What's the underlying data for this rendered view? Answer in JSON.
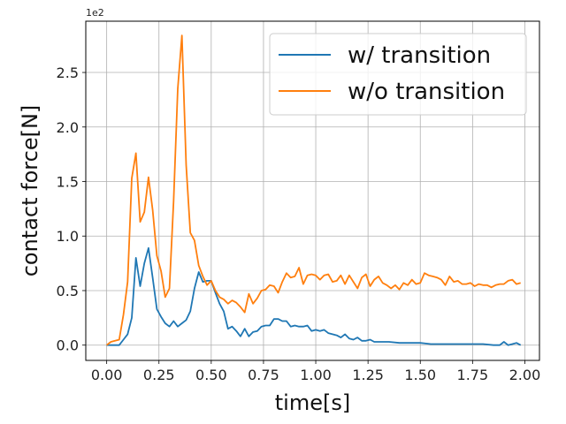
{
  "chart_data": {
    "type": "line",
    "title": "",
    "xlabel": "time[s]",
    "ylabel": "contact force[N]",
    "y_offset_label": "1e2",
    "xlim": [
      -0.1,
      2.07
    ],
    "ylim": [
      -0.14,
      2.97
    ],
    "xticks": [
      0.0,
      0.25,
      0.5,
      0.75,
      1.0,
      1.25,
      1.5,
      1.75,
      2.0
    ],
    "xtick_labels": [
      "0.00",
      "0.25",
      "0.50",
      "0.75",
      "1.00",
      "1.25",
      "1.50",
      "1.75",
      "2.00"
    ],
    "yticks": [
      0.0,
      0.5,
      1.0,
      1.5,
      2.0,
      2.5
    ],
    "ytick_labels": [
      "0.0",
      "0.5",
      "1.0",
      "1.5",
      "2.0",
      "2.5"
    ],
    "grid": true,
    "legend_position": "top-right",
    "series": [
      {
        "name": "w/ transition",
        "color": "#1f77b4",
        "x": [
          0.0,
          0.02,
          0.04,
          0.06,
          0.08,
          0.1,
          0.12,
          0.14,
          0.16,
          0.18,
          0.2,
          0.22,
          0.24,
          0.26,
          0.28,
          0.3,
          0.32,
          0.34,
          0.36,
          0.38,
          0.4,
          0.42,
          0.44,
          0.46,
          0.48,
          0.5,
          0.52,
          0.54,
          0.56,
          0.58,
          0.6,
          0.62,
          0.64,
          0.66,
          0.68,
          0.7,
          0.72,
          0.74,
          0.76,
          0.78,
          0.8,
          0.82,
          0.84,
          0.86,
          0.88,
          0.9,
          0.92,
          0.94,
          0.96,
          0.98,
          1.0,
          1.02,
          1.04,
          1.06,
          1.08,
          1.1,
          1.12,
          1.14,
          1.16,
          1.18,
          1.2,
          1.22,
          1.24,
          1.26,
          1.28,
          1.3,
          1.35,
          1.4,
          1.45,
          1.5,
          1.55,
          1.6,
          1.65,
          1.7,
          1.75,
          1.8,
          1.85,
          1.88,
          1.9,
          1.92,
          1.94,
          1.96,
          1.98
        ],
        "y": [
          0.0,
          0.0,
          0.0,
          0.0,
          0.05,
          0.1,
          0.25,
          0.8,
          0.54,
          0.75,
          0.89,
          0.62,
          0.33,
          0.26,
          0.2,
          0.17,
          0.22,
          0.17,
          0.2,
          0.23,
          0.31,
          0.52,
          0.67,
          0.58,
          0.59,
          0.59,
          0.48,
          0.38,
          0.31,
          0.15,
          0.17,
          0.13,
          0.08,
          0.15,
          0.08,
          0.12,
          0.13,
          0.17,
          0.18,
          0.18,
          0.24,
          0.24,
          0.22,
          0.22,
          0.17,
          0.18,
          0.17,
          0.17,
          0.18,
          0.13,
          0.14,
          0.13,
          0.14,
          0.11,
          0.1,
          0.09,
          0.07,
          0.1,
          0.06,
          0.05,
          0.07,
          0.04,
          0.04,
          0.05,
          0.03,
          0.03,
          0.03,
          0.02,
          0.02,
          0.02,
          0.01,
          0.01,
          0.01,
          0.01,
          0.01,
          0.01,
          0.0,
          0.0,
          0.03,
          0.0,
          0.01,
          0.02,
          0.0
        ]
      },
      {
        "name": "w/o transition",
        "color": "#ff7f0e",
        "x": [
          0.0,
          0.02,
          0.04,
          0.06,
          0.08,
          0.1,
          0.12,
          0.14,
          0.16,
          0.18,
          0.2,
          0.22,
          0.24,
          0.26,
          0.28,
          0.3,
          0.32,
          0.34,
          0.36,
          0.38,
          0.4,
          0.42,
          0.44,
          0.46,
          0.48,
          0.5,
          0.52,
          0.54,
          0.56,
          0.58,
          0.6,
          0.62,
          0.64,
          0.66,
          0.68,
          0.7,
          0.72,
          0.74,
          0.76,
          0.78,
          0.8,
          0.82,
          0.84,
          0.86,
          0.88,
          0.9,
          0.92,
          0.94,
          0.96,
          0.98,
          1.0,
          1.02,
          1.04,
          1.06,
          1.08,
          1.1,
          1.12,
          1.14,
          1.16,
          1.18,
          1.2,
          1.22,
          1.24,
          1.26,
          1.28,
          1.3,
          1.32,
          1.34,
          1.36,
          1.38,
          1.4,
          1.42,
          1.44,
          1.46,
          1.48,
          1.5,
          1.52,
          1.54,
          1.56,
          1.58,
          1.6,
          1.62,
          1.64,
          1.66,
          1.68,
          1.7,
          1.72,
          1.74,
          1.76,
          1.78,
          1.8,
          1.82,
          1.84,
          1.86,
          1.88,
          1.9,
          1.92,
          1.94,
          1.96,
          1.98
        ],
        "y": [
          0.0,
          0.03,
          0.04,
          0.05,
          0.28,
          0.58,
          1.53,
          1.76,
          1.13,
          1.22,
          1.54,
          1.24,
          0.82,
          0.68,
          0.44,
          0.52,
          1.32,
          2.35,
          2.84,
          1.65,
          1.03,
          0.96,
          0.73,
          0.63,
          0.55,
          0.59,
          0.5,
          0.44,
          0.42,
          0.38,
          0.41,
          0.39,
          0.35,
          0.3,
          0.47,
          0.38,
          0.43,
          0.5,
          0.51,
          0.55,
          0.54,
          0.48,
          0.58,
          0.66,
          0.62,
          0.63,
          0.71,
          0.56,
          0.64,
          0.65,
          0.64,
          0.6,
          0.64,
          0.65,
          0.58,
          0.59,
          0.64,
          0.56,
          0.64,
          0.58,
          0.52,
          0.62,
          0.65,
          0.54,
          0.6,
          0.63,
          0.57,
          0.55,
          0.52,
          0.55,
          0.51,
          0.57,
          0.55,
          0.6,
          0.56,
          0.57,
          0.66,
          0.64,
          0.63,
          0.62,
          0.6,
          0.55,
          0.63,
          0.58,
          0.59,
          0.56,
          0.56,
          0.57,
          0.54,
          0.56,
          0.55,
          0.55,
          0.53,
          0.55,
          0.56,
          0.56,
          0.59,
          0.6,
          0.56,
          0.57
        ]
      }
    ]
  }
}
